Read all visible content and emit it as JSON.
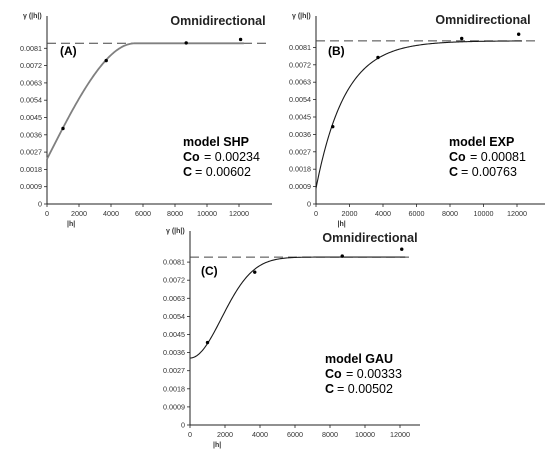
{
  "colors": {
    "axis": "#222222",
    "curve_a": "#808080",
    "curve": "#1a1a1a",
    "sill": "#444444",
    "point": "#000000"
  },
  "chart_data": [
    {
      "type": "scatter",
      "panel_label": "(A)",
      "title": "Omnidirectional",
      "ylabel": "γ (|h|)",
      "xlabel": "|h|",
      "x_ticks": [
        0,
        2000,
        4000,
        6000,
        8000,
        10000,
        12000
      ],
      "y_ticks": [
        0,
        0.0009,
        0.0018,
        0.0027,
        0.0036,
        0.0045,
        0.0054,
        0.0063,
        0.0072,
        0.0081
      ],
      "xlim": [
        0,
        12500
      ],
      "ylim": [
        0,
        0.0088
      ],
      "sill": 0.00836,
      "points": [
        [
          1000,
          0.00393
        ],
        [
          3700,
          0.00746
        ],
        [
          8700,
          0.00838
        ],
        [
          12100,
          0.00856
        ]
      ],
      "model": {
        "type": "SHP",
        "nugget": 0.00234,
        "partial_sill": 0.00602,
        "range": 5500
      },
      "model_text": {
        "name": "model   SHP",
        "co_label": "Co",
        "co_value": "= 0.00234",
        "c_label": "C",
        "c_value": "= 0.00602"
      }
    },
    {
      "type": "scatter",
      "panel_label": "(B)",
      "title": "Omnidirectional",
      "ylabel": "γ (|h|)",
      "xlabel": "|h|",
      "x_ticks": [
        0,
        2000,
        4000,
        6000,
        8000,
        10000,
        12000
      ],
      "y_ticks": [
        0,
        0.0009,
        0.0018,
        0.0027,
        0.0036,
        0.0045,
        0.0054,
        0.0063,
        0.0072,
        0.0081
      ],
      "xlim": [
        0,
        12500
      ],
      "ylim": [
        0,
        0.0088
      ],
      "sill": 0.00844,
      "points": [
        [
          1000,
          0.004
        ],
        [
          3700,
          0.00758
        ],
        [
          8700,
          0.00856
        ],
        [
          12100,
          0.00878
        ]
      ],
      "model": {
        "type": "EXP",
        "nugget": 0.00081,
        "partial_sill": 0.00763,
        "range": 5200
      },
      "model_text": {
        "name": "model   EXP",
        "co_label": "Co",
        "co_value": "= 0.00081",
        "c_label": "C",
        "c_value": "= 0.00763"
      }
    },
    {
      "type": "scatter",
      "panel_label": "(C)",
      "title": "Omnidirectional",
      "ylabel": "γ (|h|)",
      "xlabel": "|h|",
      "x_ticks": [
        0,
        2000,
        4000,
        6000,
        8000,
        10000,
        12000
      ],
      "y_ticks": [
        0,
        0.0009,
        0.0018,
        0.0027,
        0.0036,
        0.0045,
        0.0054,
        0.0063,
        0.0072,
        0.0081
      ],
      "xlim": [
        0,
        12500
      ],
      "ylim": [
        0,
        0.0088
      ],
      "sill": 0.00835,
      "points": [
        [
          1000,
          0.0041
        ],
        [
          3700,
          0.0076
        ],
        [
          8700,
          0.0084
        ],
        [
          12100,
          0.00874
        ]
      ],
      "model": {
        "type": "GAU",
        "nugget": 0.00333,
        "partial_sill": 0.00502,
        "range": 4400
      },
      "model_text": {
        "name": "model   GAU",
        "co_label": "Co",
        "co_value": "= 0.00333",
        "c_label": "C",
        "c_value": "= 0.00502"
      }
    }
  ]
}
